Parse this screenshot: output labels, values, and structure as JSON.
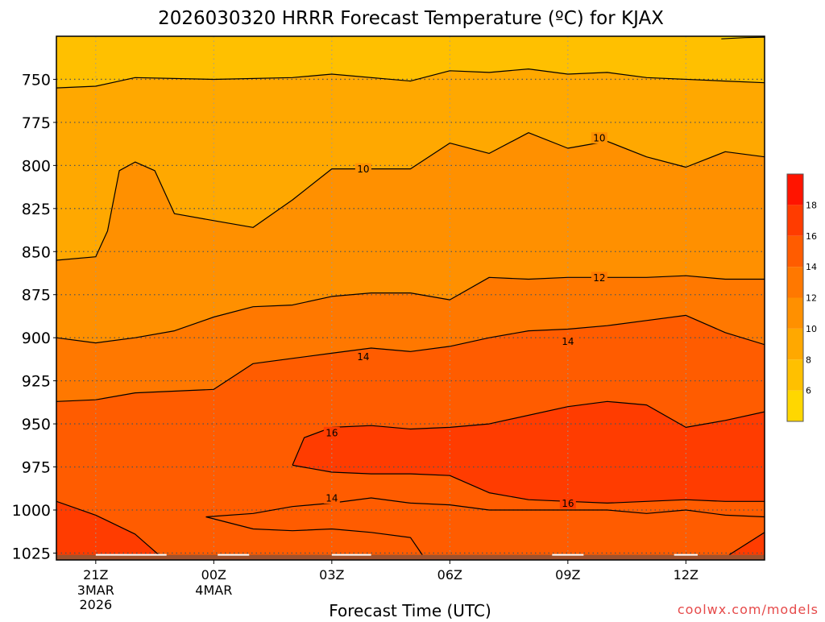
{
  "chart_data": {
    "type": "filled-contour",
    "title": "2026030320 HRRR Forecast Temperature (ºC) for KJAX",
    "xlabel": "Forecast Time (UTC)",
    "credit": "coolwx.com/models",
    "x_ticks": [
      {
        "hour": 0,
        "label": "21Z",
        "sub": [
          "3MAR",
          "2026"
        ]
      },
      {
        "hour": 3,
        "label": "00Z",
        "sub": [
          "4MAR"
        ]
      },
      {
        "hour": 6,
        "label": "03Z",
        "sub": []
      },
      {
        "hour": 9,
        "label": "06Z",
        "sub": []
      },
      {
        "hour": 12,
        "label": "09Z",
        "sub": []
      },
      {
        "hour": 15,
        "label": "12Z",
        "sub": []
      }
    ],
    "y_ticks": [
      750,
      775,
      800,
      825,
      850,
      875,
      900,
      925,
      950,
      975,
      1000,
      1025
    ],
    "hour_range": [
      -1,
      17
    ],
    "pressure_range": [
      725,
      1029
    ],
    "y_scale": "pressure-linear",
    "grid": "dotted",
    "colorbar": {
      "levels": [
        4,
        6,
        8,
        10,
        12,
        14,
        16,
        18,
        20
      ],
      "labels": [
        6,
        8,
        10,
        12,
        14,
        16,
        18
      ],
      "colors": [
        "#ffd700",
        "#ffc000",
        "#ffa800",
        "#ff9000",
        "#ff7800",
        "#ff5c00",
        "#ff3c00",
        "#ff1400"
      ]
    },
    "contour_labels": [
      "10",
      "10",
      "12",
      "14",
      "14",
      "16",
      "14",
      "16"
    ],
    "contours": [
      {
        "level": 8,
        "points": [
          [
            -1,
            755
          ],
          [
            0,
            754
          ],
          [
            1,
            749
          ],
          [
            3,
            750
          ],
          [
            5,
            749
          ],
          [
            6,
            747
          ],
          [
            8,
            751
          ],
          [
            9,
            745
          ],
          [
            10,
            746
          ],
          [
            11,
            744
          ],
          [
            12,
            747
          ],
          [
            13,
            746
          ],
          [
            14,
            749
          ],
          [
            16,
            751
          ],
          [
            17,
            752
          ]
        ]
      },
      {
        "level": 8,
        "points": [
          [
            15.9,
            726.5
          ],
          [
            16.5,
            725.8
          ],
          [
            17,
            725.5
          ]
        ]
      },
      {
        "level": 10,
        "points": [
          [
            -1,
            855
          ],
          [
            0,
            853
          ],
          [
            0.3,
            838
          ],
          [
            0.6,
            803
          ],
          [
            1,
            798
          ],
          [
            1.5,
            803
          ],
          [
            2,
            828
          ],
          [
            3,
            832
          ],
          [
            4,
            836
          ],
          [
            5,
            820
          ],
          [
            6,
            802
          ],
          [
            7,
            802
          ],
          [
            8,
            802
          ],
          [
            9,
            787
          ],
          [
            10,
            793
          ],
          [
            11,
            781
          ],
          [
            12,
            790
          ],
          [
            13,
            786
          ],
          [
            14,
            795
          ],
          [
            15,
            801
          ],
          [
            16,
            792
          ],
          [
            17,
            795
          ]
        ]
      },
      {
        "level": 12,
        "points": [
          [
            -1,
            900
          ],
          [
            0,
            903
          ],
          [
            1,
            900
          ],
          [
            2,
            896
          ],
          [
            3,
            888
          ],
          [
            4,
            882
          ],
          [
            5,
            881
          ],
          [
            6,
            876
          ],
          [
            7,
            874
          ],
          [
            8,
            874
          ],
          [
            9,
            878
          ],
          [
            10,
            865
          ],
          [
            11,
            866
          ],
          [
            12,
            865
          ],
          [
            13,
            865
          ],
          [
            14,
            865
          ],
          [
            15,
            864
          ],
          [
            16,
            866
          ],
          [
            17,
            866
          ]
        ]
      },
      {
        "level": 14,
        "points": [
          [
            -1,
            937
          ],
          [
            0,
            936
          ],
          [
            1,
            932
          ],
          [
            3,
            930
          ],
          [
            4,
            915
          ],
          [
            5,
            912
          ],
          [
            6,
            909
          ],
          [
            7,
            906
          ],
          [
            8,
            908
          ],
          [
            9,
            905
          ],
          [
            10,
            900
          ],
          [
            11,
            896
          ],
          [
            12,
            895
          ],
          [
            13,
            893
          ],
          [
            14,
            890
          ],
          [
            15,
            887
          ],
          [
            16,
            897
          ],
          [
            17,
            904
          ]
        ]
      },
      {
        "level": 16,
        "points": [
          [
            5,
            974
          ],
          [
            5.3,
            958
          ],
          [
            6,
            952
          ],
          [
            7,
            951
          ],
          [
            8,
            953
          ],
          [
            9,
            952
          ],
          [
            10,
            950
          ],
          [
            12,
            940
          ],
          [
            13,
            937
          ],
          [
            14,
            939
          ],
          [
            15,
            952
          ],
          [
            16,
            948
          ],
          [
            17,
            943
          ]
        ]
      },
      {
        "level": 16,
        "points": [
          [
            5,
            974
          ],
          [
            6,
            978
          ],
          [
            7,
            979
          ],
          [
            8,
            979
          ],
          [
            9,
            980
          ],
          [
            10,
            990
          ],
          [
            11,
            994
          ],
          [
            12,
            995
          ],
          [
            13,
            996
          ],
          [
            14,
            995
          ],
          [
            15,
            994
          ],
          [
            16,
            995
          ],
          [
            17,
            995
          ]
        ]
      },
      {
        "level": 14,
        "points": [
          [
            2.8,
            1004
          ],
          [
            4,
            1002
          ],
          [
            5,
            998
          ],
          [
            6,
            996
          ],
          [
            7,
            993
          ],
          [
            8,
            996
          ],
          [
            9,
            997
          ],
          [
            10,
            1000
          ],
          [
            11,
            1000
          ],
          [
            12,
            1000
          ],
          [
            13,
            1000
          ],
          [
            14,
            1002
          ],
          [
            15,
            1000
          ],
          [
            16,
            1003
          ],
          [
            17,
            1004
          ]
        ]
      },
      {
        "level": 14,
        "points": [
          [
            2.8,
            1004
          ],
          [
            4,
            1011
          ],
          [
            5,
            1012
          ],
          [
            6,
            1011
          ],
          [
            7,
            1013
          ],
          [
            8,
            1016
          ],
          [
            8.3,
            1026
          ]
        ]
      },
      {
        "level": 14,
        "points": [
          [
            -1,
            995
          ],
          [
            0,
            1003
          ],
          [
            1,
            1014
          ],
          [
            1.6,
            1026
          ]
        ]
      },
      {
        "level": 14,
        "points": [
          [
            16.1,
            1026
          ],
          [
            17,
            1013
          ]
        ]
      }
    ]
  }
}
